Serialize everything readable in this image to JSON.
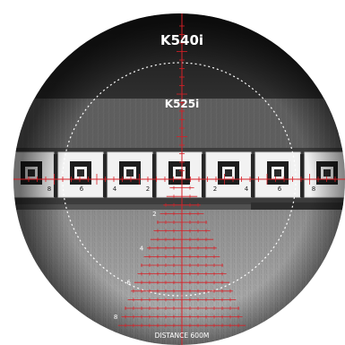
{
  "labels": {
    "outer_model": "K540i",
    "inner_model": "K525i",
    "distance": "DISTANCE 600M"
  },
  "reticle": {
    "color": "#d81f26",
    "holdover_marks": [
      "2",
      "4",
      "6",
      "8"
    ]
  },
  "targets": {
    "numbers": [
      "8",
      "6",
      "4",
      "2",
      "2",
      "4",
      "6",
      "8"
    ]
  }
}
